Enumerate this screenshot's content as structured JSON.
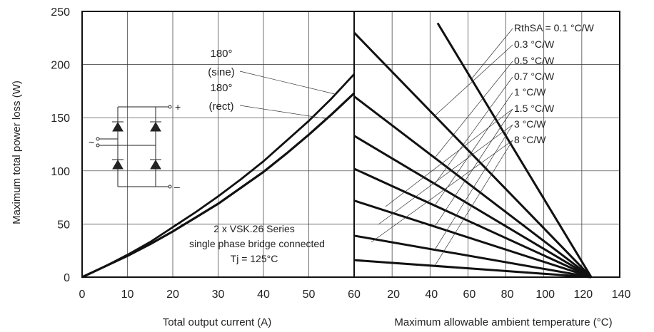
{
  "chart_data": [
    {
      "type": "line",
      "xlabel": "Total output current (A)",
      "ylabel": "Maximum total power loss (W)",
      "xlim": [
        0,
        60
      ],
      "ylim": [
        0,
        250
      ],
      "xticks": [
        0,
        10,
        20,
        30,
        40,
        50,
        60
      ],
      "yticks": [
        0,
        50,
        100,
        150,
        200,
        250
      ],
      "grid": true,
      "series": [
        {
          "name": "180° (sine)",
          "label_lines": [
            "180°",
            "(sine)"
          ],
          "x": [
            0,
            5,
            10,
            15,
            20,
            25,
            30,
            35,
            40,
            45,
            50,
            55,
            60
          ],
          "y": [
            0,
            10,
            21,
            33,
            47,
            61,
            76,
            92,
            109,
            128,
            147,
            168,
            191
          ]
        },
        {
          "name": "180° (rect)",
          "label_lines": [
            "180°",
            "(rect)"
          ],
          "x": [
            0,
            5,
            10,
            15,
            20,
            25,
            30,
            35,
            40,
            45,
            50,
            55,
            60
          ],
          "y": [
            0,
            10,
            20,
            31,
            43,
            56,
            69,
            84,
            99,
            116,
            134,
            153,
            173
          ]
        }
      ],
      "annotation": [
        "2 x VSK.26 Series",
        "single phase bridge connected",
        "Tj = 125°C"
      ],
      "inset": {
        "plus_label": "+",
        "minus_label": "–",
        "ac_label": "~"
      }
    },
    {
      "type": "line",
      "xlabel": "Maximum allowable ambient temperature (°C)",
      "xlim": [
        0,
        140
      ],
      "ylim": [
        0,
        250
      ],
      "xticks": [
        20,
        40,
        60,
        80,
        100,
        120,
        140
      ],
      "grid": true,
      "convergence": {
        "x": 125,
        "y": 0
      },
      "series": [
        {
          "name": "RthSA = 0.1 °C/W",
          "top": {
            "x": 44,
            "y": 239
          }
        },
        {
          "name": "0.3 °C/W",
          "top": {
            "x": 0,
            "y": 230
          }
        },
        {
          "name": "0.5 °C/W",
          "top": {
            "x": 0,
            "y": 170
          }
        },
        {
          "name": "0.7 °C/W",
          "top": {
            "x": 0,
            "y": 133
          }
        },
        {
          "name": "1 °C/W",
          "top": {
            "x": 0,
            "y": 102
          }
        },
        {
          "name": "1.5 °C/W",
          "top": {
            "x": 0,
            "y": 72
          }
        },
        {
          "name": "3 °C/W",
          "top": {
            "x": 0,
            "y": 39
          }
        },
        {
          "name": "8 °C/W",
          "top": {
            "x": 0,
            "y": 16
          }
        }
      ]
    }
  ]
}
